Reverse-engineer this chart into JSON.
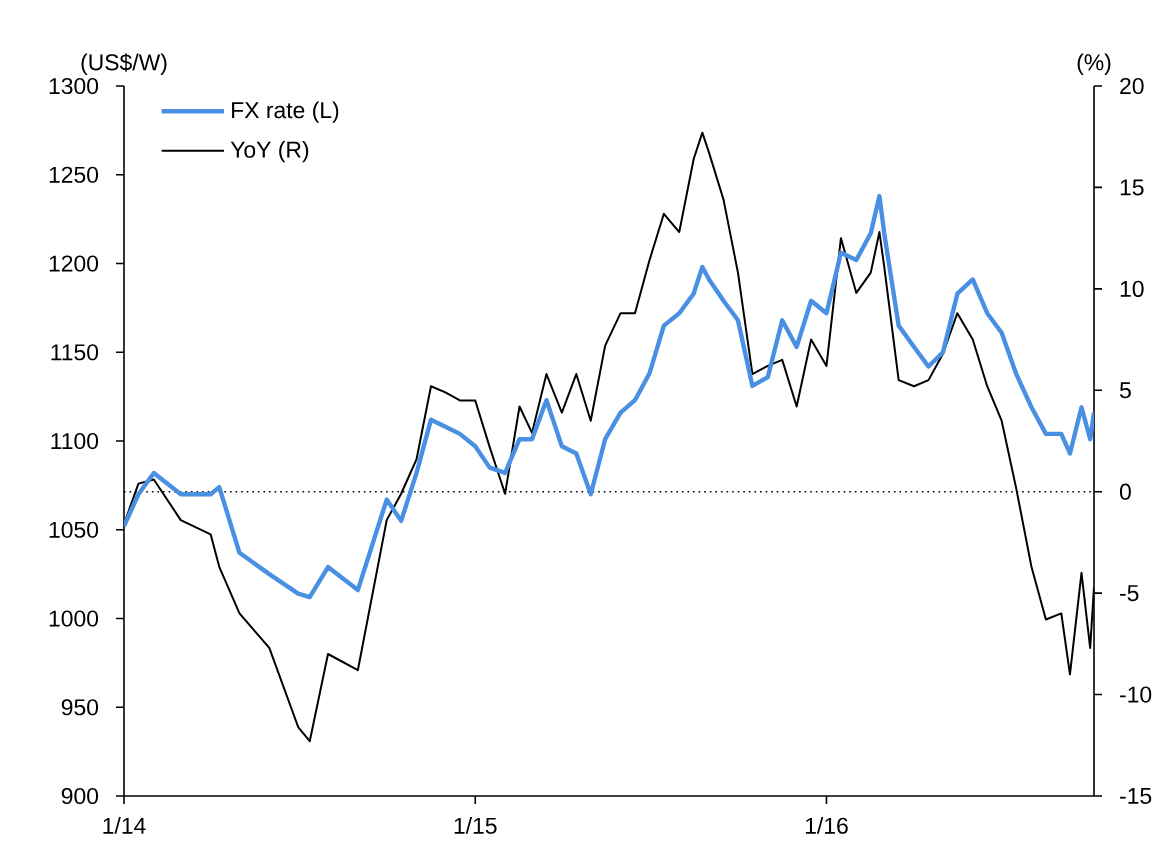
{
  "chart_data": {
    "type": "line",
    "ylabel": "(US$/W)",
    "y2label": "(%)",
    "x": [
      "2014-01-01",
      "2014-01-16",
      "2014-02-01",
      "2014-03-01",
      "2014-04-01",
      "2014-04-10",
      "2014-05-01",
      "2014-06-01",
      "2014-07-01",
      "2014-07-13",
      "2014-08-01",
      "2014-09-01",
      "2014-10-01",
      "2014-10-16",
      "2014-11-01",
      "2014-11-16",
      "2014-12-01",
      "2014-12-16",
      "2015-01-01",
      "2015-01-16",
      "2015-02-01",
      "2015-02-16",
      "2015-03-01",
      "2015-03-16",
      "2015-04-01",
      "2015-04-16",
      "2015-05-01",
      "2015-05-16",
      "2015-06-01",
      "2015-06-16",
      "2015-07-01",
      "2015-07-16",
      "2015-08-01",
      "2015-08-16",
      "2015-08-25",
      "2015-09-01",
      "2015-09-16",
      "2015-10-01",
      "2015-10-16",
      "2015-11-01",
      "2015-11-16",
      "2015-12-01",
      "2015-12-16",
      "2016-01-01",
      "2016-01-16",
      "2016-02-01",
      "2016-02-16",
      "2016-02-25",
      "2016-03-01",
      "2016-03-16",
      "2016-04-01",
      "2016-04-16",
      "2016-05-01",
      "2016-05-16",
      "2016-06-01",
      "2016-06-16",
      "2016-07-01",
      "2016-07-16",
      "2016-08-01",
      "2016-08-16",
      "2016-09-01",
      "2016-09-10",
      "2016-09-22",
      "2016-10-01",
      "2016-10-05"
    ],
    "series": [
      {
        "name": "FX rate (L)",
        "color": "#4a90e2",
        "values": [
          1052,
          1070,
          1082,
          1070,
          1070,
          1074,
          1037,
          1025,
          1014,
          1012,
          1029,
          1016,
          1067,
          1055,
          1082,
          1112,
          1108,
          1104,
          1097,
          1085,
          1082,
          1101,
          1101,
          1123,
          1097,
          1093,
          1070,
          1101,
          1116,
          1123,
          1138,
          1165,
          1172,
          1183,
          1198,
          1191,
          1179,
          1168,
          1131,
          1136,
          1168,
          1153,
          1179,
          1172,
          1206,
          1202,
          1217,
          1238,
          1217,
          1165,
          1153,
          1142,
          1150,
          1183,
          1191,
          1172,
          1161,
          1138,
          1119,
          1104,
          1104,
          1093,
          1119,
          1101,
          1116
        ]
      },
      {
        "name": "YoY (R)",
        "color": "#000000",
        "axis": "y2",
        "values": [
          -1.6,
          0.4,
          0.6,
          -1.4,
          -2.1,
          -3.7,
          -6.0,
          -7.7,
          -11.6,
          -12.3,
          -8.0,
          -8.8,
          -1.4,
          -0.1,
          1.6,
          5.2,
          4.9,
          4.5,
          4.5,
          2.2,
          -0.1,
          4.2,
          2.9,
          5.8,
          3.9,
          5.8,
          3.5,
          7.2,
          8.8,
          8.8,
          11.4,
          13.7,
          12.8,
          16.4,
          17.7,
          16.7,
          14.4,
          10.8,
          5.8,
          6.2,
          6.5,
          4.2,
          7.5,
          6.2,
          12.5,
          9.8,
          10.8,
          12.8,
          11.1,
          5.5,
          5.2,
          5.5,
          6.8,
          8.8,
          7.5,
          5.2,
          3.5,
          0.2,
          -3.7,
          -6.3,
          -6.0,
          -9.0,
          -4.0,
          -7.7,
          -4.7
        ]
      }
    ],
    "xlim": [
      "2014-01-01",
      "2016-10-05"
    ],
    "xticks": [
      {
        "value": "2014-01-01",
        "label": "1/14"
      },
      {
        "value": "2015-01-01",
        "label": "1/15"
      },
      {
        "value": "2016-01-01",
        "label": "1/16"
      }
    ],
    "ylim": [
      900,
      1300
    ],
    "yticks": [
      900,
      950,
      1000,
      1050,
      1100,
      1150,
      1200,
      1250,
      1300
    ],
    "y2lim": [
      -15,
      20
    ],
    "y2ticks": [
      -15,
      -10,
      -5,
      0,
      5,
      10,
      15,
      20
    ],
    "ref_lines": [
      {
        "axis": "y2",
        "value": 0,
        "line_style": "dotted",
        "color": "#000000"
      }
    ],
    "grid": false,
    "legend": "top left",
    "marker": "none",
    "line_style": "solid"
  }
}
